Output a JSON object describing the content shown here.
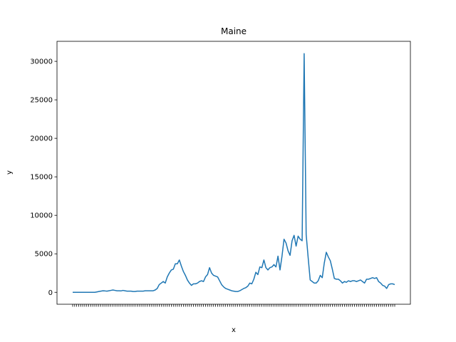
{
  "chart_data": {
    "type": "line",
    "title": "Maine",
    "xlabel": "x",
    "ylabel": "y",
    "ylim": [
      -1550,
      32600
    ],
    "yticks": [
      0,
      5000,
      10000,
      15000,
      20000,
      25000,
      30000
    ],
    "ytick_labels": [
      "0",
      "5000",
      "10000",
      "15000",
      "20000",
      "25000",
      "30000"
    ],
    "grid": false,
    "line_color": "#1f77b4",
    "x_tick_labels_note": "dense overlapping weekly date labels, unreadable",
    "series": [
      {
        "values": [
          0,
          0,
          0,
          0,
          0,
          0,
          0,
          0,
          0,
          0,
          0,
          0,
          50,
          100,
          150,
          200,
          180,
          150,
          200,
          250,
          300,
          250,
          200,
          200,
          180,
          250,
          200,
          150,
          150,
          150,
          100,
          100,
          150,
          150,
          150,
          150,
          200,
          200,
          200,
          200,
          200,
          300,
          500,
          1000,
          1200,
          1400,
          1200,
          2000,
          2500,
          2900,
          3000,
          3700,
          3700,
          4200,
          3400,
          2700,
          2200,
          1600,
          1200,
          900,
          1100,
          1100,
          1200,
          1400,
          1500,
          1400,
          2000,
          2300,
          3200,
          2500,
          2200,
          2100,
          2000,
          1500,
          1000,
          700,
          500,
          400,
          300,
          200,
          150,
          100,
          100,
          200,
          350,
          500,
          600,
          800,
          1200,
          1100,
          1700,
          2600,
          2300,
          3300,
          3200,
          4200,
          3200,
          2900,
          3200,
          3300,
          3600,
          3300,
          4700,
          2900,
          4700,
          6900,
          6400,
          5400,
          4800,
          6700,
          7400,
          6000,
          7300,
          6900,
          6700,
          31000,
          7500,
          4500,
          1600,
          1400,
          1200,
          1200,
          1500,
          2200,
          1900,
          3800,
          5200,
          4600,
          4100,
          3000,
          1800,
          1700,
          1700,
          1500,
          1200,
          1400,
          1300,
          1500,
          1400,
          1500,
          1500,
          1400,
          1500,
          1600,
          1400,
          1200,
          1700,
          1700,
          1800,
          1900,
          1800,
          1900,
          1400,
          1200,
          900,
          800,
          500,
          1000,
          1100,
          1100,
          1000
        ]
      }
    ]
  }
}
